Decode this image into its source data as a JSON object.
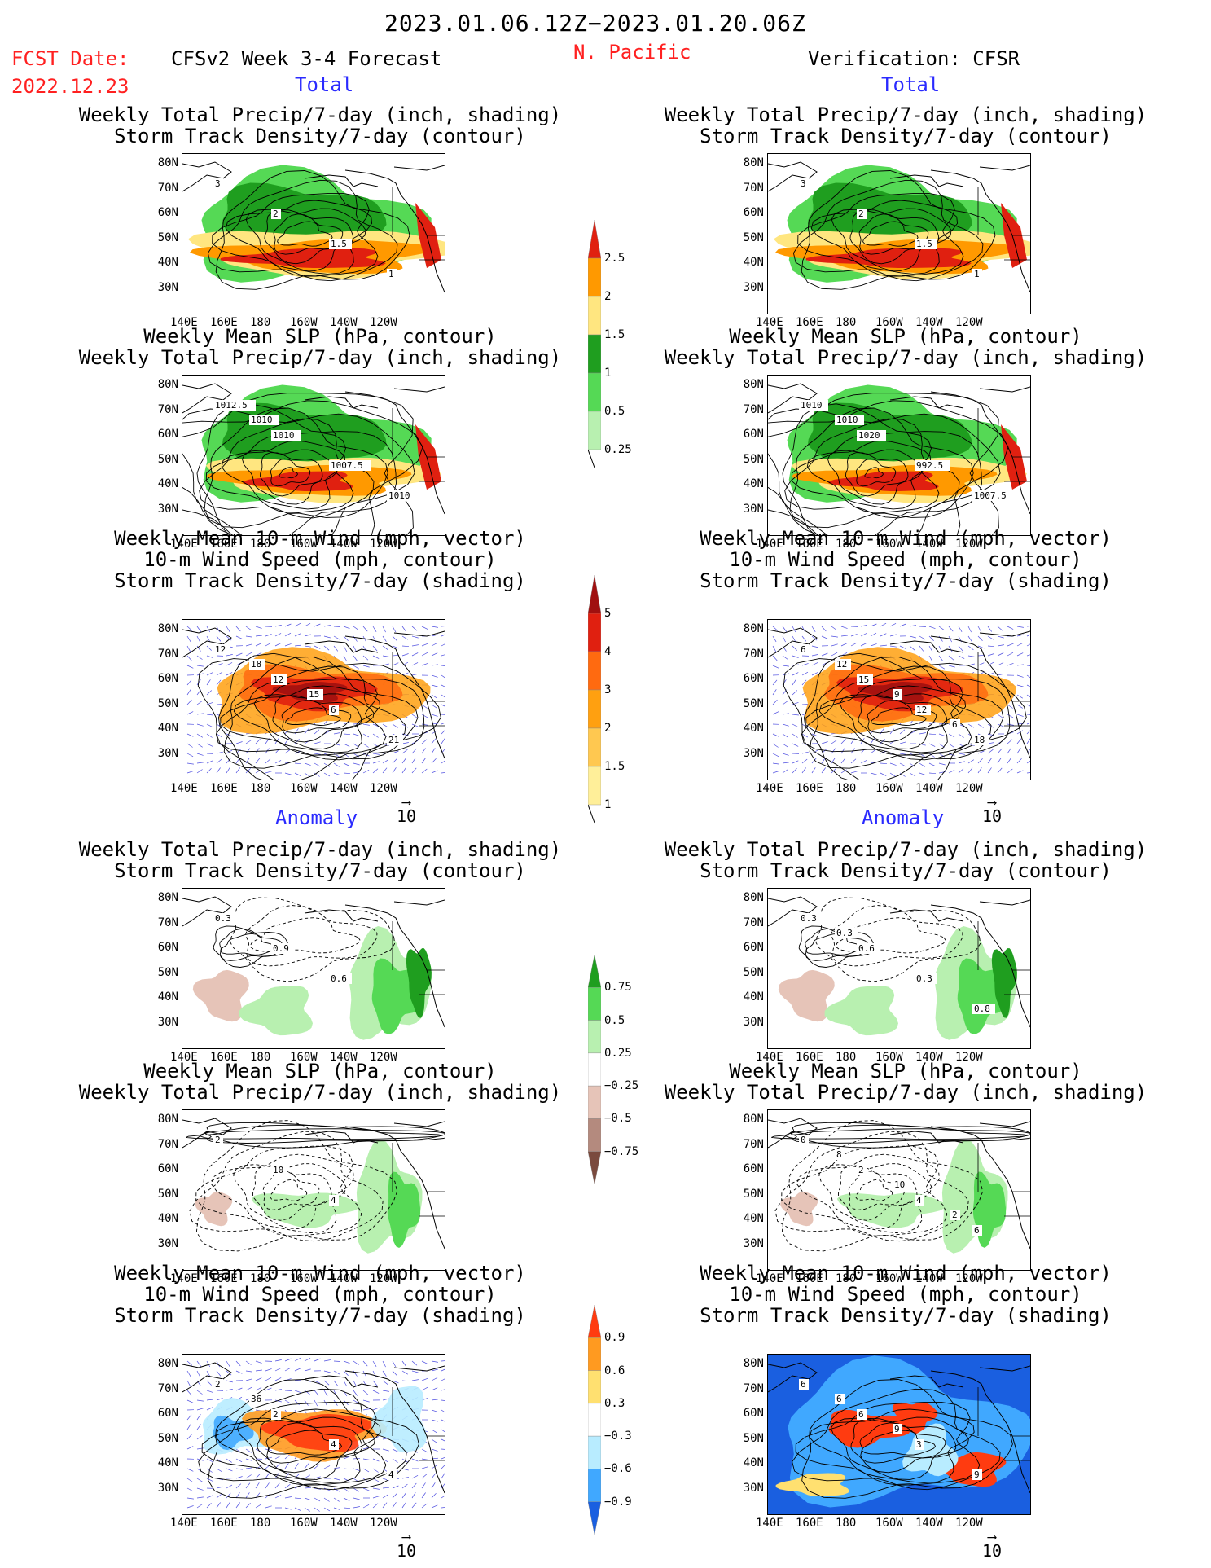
{
  "header": {
    "date_range": "2023.01.06.12Z−2023.01.20.06Z",
    "fcst_label": "FCST Date:",
    "fcst_date": "2022.12.23",
    "forecast_title": "CFSv2 Week 3-4 Forecast",
    "region": "N. Pacific",
    "verification_title": "Verification: CFSR"
  },
  "sections": {
    "total": "Total",
    "anomaly": "Anomaly"
  },
  "panel_titles": {
    "precip_storm": [
      "Weekly Total Precip/7-day (inch, shading)",
      "Storm Track Density/7-day (contour)"
    ],
    "slp_precip": [
      "Weekly Mean SLP (hPa, contour)",
      "Weekly Total Precip/7-day (inch, shading)"
    ],
    "wind_storm": [
      "Weekly Mean 10-m Wind (mph, vector)",
      "10-m Wind Speed (mph, contour)",
      "Storm Track Density/7-day (shading)"
    ]
  },
  "axes": {
    "lat_labels": [
      "80N",
      "70N",
      "60N",
      "50N",
      "40N",
      "30N"
    ],
    "lon_labels": [
      "140E",
      "160E",
      "180",
      "160W",
      "140W",
      "120W"
    ]
  },
  "vector_reference": "10",
  "colorbars": {
    "precip_total": {
      "ticks": [
        "2.5",
        "2",
        "1.5",
        "1",
        "0.5",
        "0.25"
      ],
      "colors": [
        "#e02010",
        "#ff9900",
        "#ffe680",
        "#1f9e1f",
        "#55d955",
        "#b8f0b0"
      ]
    },
    "storm_total": {
      "ticks": [
        "5",
        "4",
        "3",
        "2",
        "1.5",
        "1"
      ],
      "colors": [
        "#a01010",
        "#e02010",
        "#ff6a10",
        "#ffa010",
        "#ffc850",
        "#ffef99"
      ]
    },
    "precip_anom": {
      "ticks": [
        "0.75",
        "0.5",
        "0.25",
        "−0.25",
        "−0.5",
        "−0.75"
      ],
      "colors": [
        "#1f9e1f",
        "#55d955",
        "#b8f0b0",
        "#ffffff",
        "#e6c4b8",
        "#b48a7e",
        "#7a4a3e"
      ]
    },
    "storm_anom": {
      "ticks": [
        "0.9",
        "0.6",
        "0.3",
        "−0.3",
        "−0.6",
        "−0.9"
      ],
      "colors": [
        "#ff3b10",
        "#ff9a20",
        "#ffe070",
        "#ffffff",
        "#b8ecff",
        "#40a8ff",
        "#1a5fe0"
      ]
    }
  },
  "map_labels": {
    "fp1": [
      "3",
      "2",
      "1.5",
      "1"
    ],
    "vp1": [
      "3",
      "2",
      "1.5",
      "1"
    ],
    "fp2": [
      "1012.5",
      "1010",
      "1007.5",
      "1010",
      "1010"
    ],
    "vp2": [
      "1010",
      "1020",
      "992.5",
      "1007.5",
      "1010"
    ],
    "fp3": [
      "12",
      "12",
      "6",
      "21",
      "18",
      "15"
    ],
    "vp3": [
      "6",
      "15",
      "12",
      "18",
      "12",
      "9",
      "6"
    ],
    "fp4": [
      "0.3",
      "0.9",
      "0.6"
    ],
    "vp4": [
      "0.3",
      "0.6",
      "0.3",
      "0.8",
      "0.3"
    ],
    "fp5": [
      "2",
      "10",
      "4"
    ],
    "vp5": [
      "0",
      "2",
      "4",
      "6",
      "8",
      "10",
      "2"
    ],
    "fp6": [
      "2",
      "2",
      "4",
      "4",
      "36"
    ],
    "vp6": [
      "6",
      "6",
      "3",
      "9",
      "6",
      "9"
    ]
  },
  "colors": {
    "title_red": "#ff2020",
    "section_blue": "#2a2aff"
  }
}
